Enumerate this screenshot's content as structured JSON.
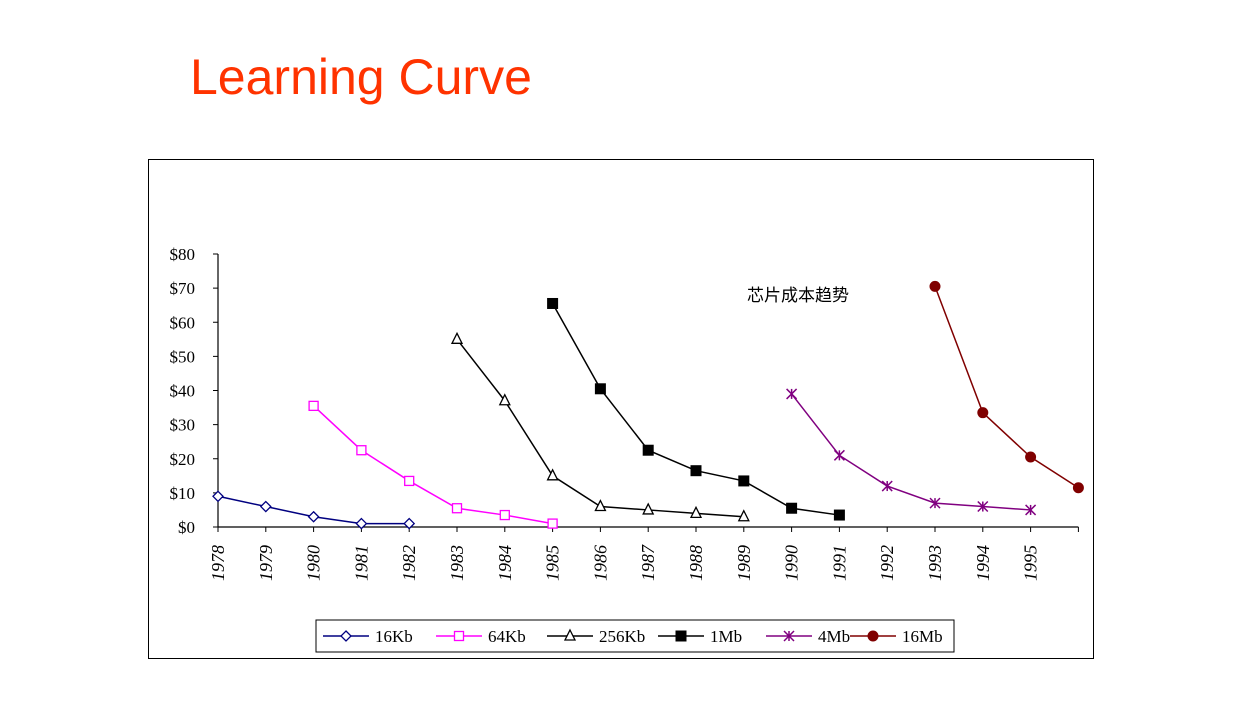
{
  "slide": {
    "title": "Learning Curve"
  },
  "chart_data": {
    "type": "line",
    "title": "",
    "xlabel": "",
    "ylabel": "",
    "annotation": "芯片成本趋势",
    "x": [
      "1978",
      "1979",
      "1980",
      "1981",
      "1982",
      "1983",
      "1984",
      "1985",
      "1986",
      "1987",
      "1988",
      "1989",
      "1990",
      "1991",
      "1992",
      "1993",
      "1994",
      "1995"
    ],
    "y_ticks": [
      "$0",
      "$10",
      "$20",
      "$30",
      "$40",
      "$50",
      "$60",
      "$70",
      "$80"
    ],
    "ylim": [
      0,
      80
    ],
    "grid": false,
    "legend_position": "bottom",
    "series": [
      {
        "name": "16Kb",
        "color": "#000080",
        "marker": "diamond-open",
        "points": [
          [
            "1978",
            9
          ],
          [
            "1979",
            6
          ],
          [
            "1980",
            3
          ],
          [
            "1981",
            1
          ],
          [
            "1982",
            1
          ]
        ]
      },
      {
        "name": "64Kb",
        "color": "#ff00ff",
        "marker": "square-open",
        "points": [
          [
            "1980",
            35.5
          ],
          [
            "1981",
            22.5
          ],
          [
            "1982",
            13.5
          ],
          [
            "1983",
            5.5
          ],
          [
            "1984",
            3.5
          ],
          [
            "1985",
            1
          ]
        ]
      },
      {
        "name": "256Kb",
        "color": "#000000",
        "marker": "triangle-open",
        "points": [
          [
            "1983",
            55
          ],
          [
            "1984",
            37
          ],
          [
            "1985",
            15
          ],
          [
            "1986",
            6
          ],
          [
            "1987",
            5
          ],
          [
            "1988",
            4
          ],
          [
            "1989",
            3
          ]
        ]
      },
      {
        "name": "1Mb",
        "color": "#000000",
        "marker": "square-filled",
        "points": [
          [
            "1985",
            65.5
          ],
          [
            "1986",
            40.5
          ],
          [
            "1987",
            22.5
          ],
          [
            "1988",
            16.5
          ],
          [
            "1989",
            13.5
          ],
          [
            "1990",
            5.5
          ],
          [
            "1991",
            3.5
          ]
        ]
      },
      {
        "name": "4Mb",
        "color": "#800080",
        "marker": "star",
        "points": [
          [
            "1990",
            39
          ],
          [
            "1991",
            21
          ],
          [
            "1992",
            12
          ],
          [
            "1993",
            7
          ],
          [
            "1994",
            6
          ],
          [
            "1995",
            5
          ]
        ]
      },
      {
        "name": "16Mb",
        "color": "#800000",
        "marker": "circle-filled",
        "points": [
          [
            "1993",
            70.5
          ],
          [
            "1994",
            33.5
          ],
          [
            "1995",
            20.5
          ],
          [
            "1996",
            11.5
          ]
        ]
      }
    ]
  }
}
